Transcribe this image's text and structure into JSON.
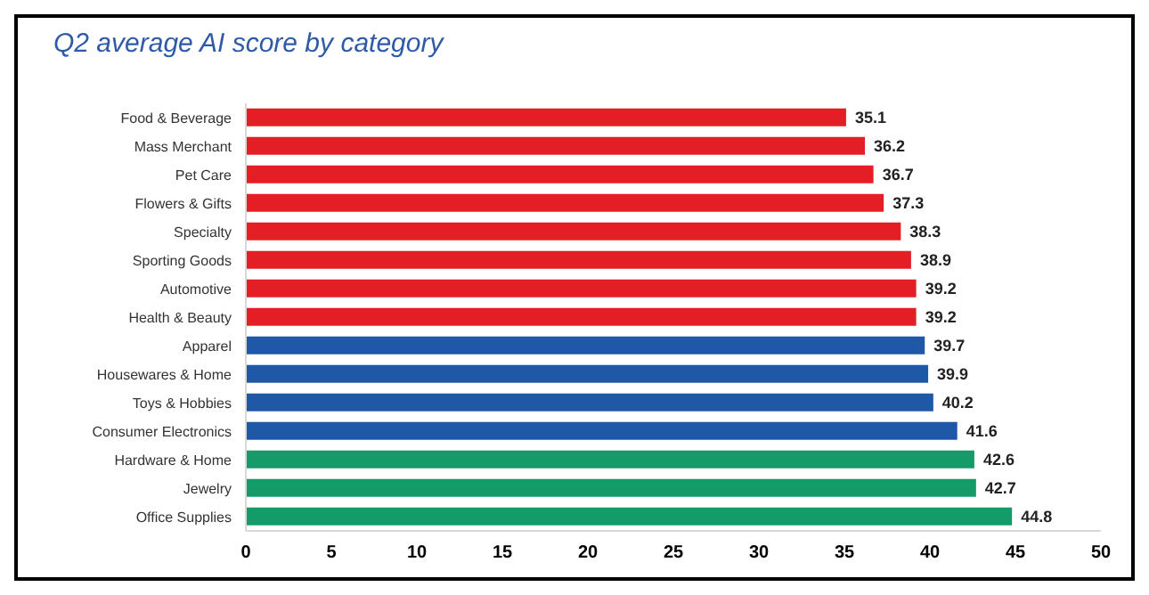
{
  "chart_data": {
    "type": "bar",
    "orientation": "horizontal",
    "title": "Q2 average AI score by category",
    "categories": [
      "Food & Beverage",
      "Mass Merchant",
      "Pet Care",
      "Flowers & Gifts",
      "Specialty",
      "Sporting Goods",
      "Automotive",
      "Health & Beauty",
      "Apparel",
      "Housewares & Home",
      "Toys & Hobbies",
      "Consumer Electronics",
      "Hardware & Home",
      "Jewelry",
      "Office Supplies"
    ],
    "values": [
      35.1,
      36.2,
      36.7,
      37.3,
      38.3,
      38.9,
      39.2,
      39.2,
      39.7,
      39.9,
      40.2,
      41.6,
      42.6,
      42.7,
      44.8
    ],
    "colors": [
      "#e31e25",
      "#e31e25",
      "#e31e25",
      "#e31e25",
      "#e31e25",
      "#e31e25",
      "#e31e25",
      "#e31e25",
      "#1f58a6",
      "#1f58a6",
      "#1f58a6",
      "#1f58a6",
      "#159b6a",
      "#159b6a",
      "#159b6a"
    ],
    "xlim": [
      0,
      50
    ],
    "xticks": [
      0,
      5,
      10,
      15,
      20,
      25,
      30,
      35,
      40,
      45,
      50
    ],
    "data_labels": true,
    "grid": false
  }
}
